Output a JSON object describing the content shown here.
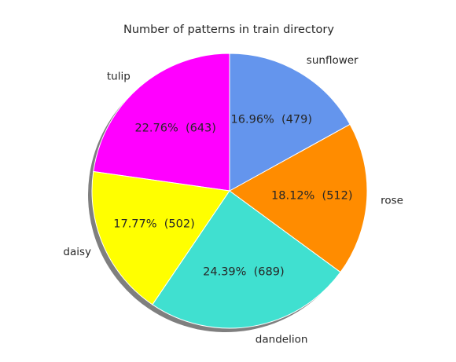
{
  "chart_data": {
    "type": "pie",
    "title": "Number of patterns in train directory",
    "categories": [
      "tulip",
      "daisy",
      "dandelion",
      "rose",
      "sunflower"
    ],
    "values": [
      643,
      502,
      689,
      512,
      479
    ],
    "percent_labels": [
      "22.76%  (643)",
      "17.77%  (502)",
      "24.39%  (689)",
      "18.12%  (512)",
      "16.96%  (479)"
    ],
    "colors": [
      "#ff00ff",
      "#ffff00",
      "#40e0d0",
      "#ff8c00",
      "#6495ed"
    ],
    "start_angle": 90,
    "shadow": true,
    "legend": "none"
  }
}
